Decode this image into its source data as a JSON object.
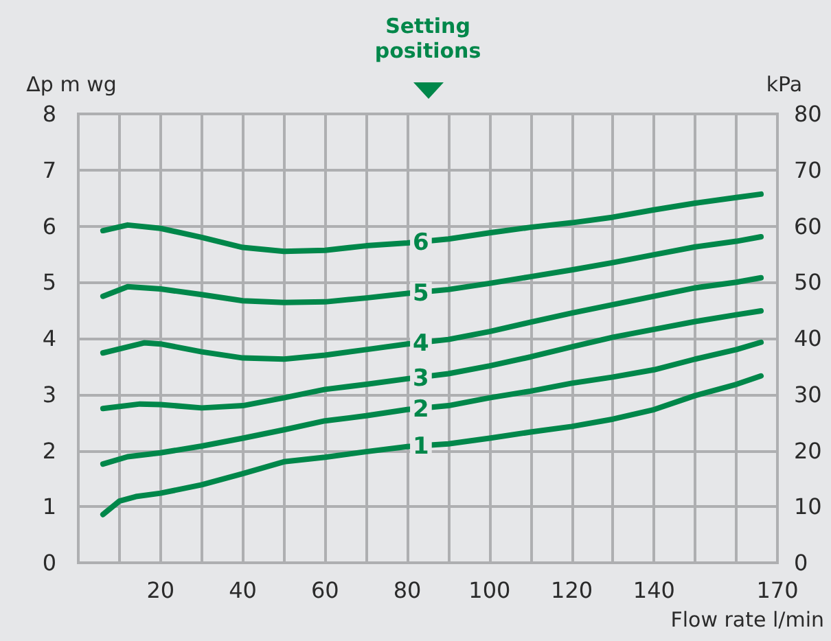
{
  "chart_data": {
    "type": "line",
    "xlabel": "Flow rate l/min",
    "ylabel": "Δp m wg",
    "y2label": "kPa",
    "annotations": [
      "Setting positions"
    ],
    "x": [
      6,
      12,
      20,
      30,
      40,
      50,
      60,
      70,
      80,
      90,
      100,
      110,
      120,
      130,
      140,
      150,
      160,
      166
    ],
    "series": [
      {
        "name": "6",
        "color": "#00874a",
        "values": [
          5.92,
          6.02,
          5.96,
          5.8,
          5.62,
          5.55,
          5.57,
          5.65,
          5.7,
          5.77,
          5.88,
          5.98,
          6.06,
          6.16,
          6.29,
          6.41,
          6.51,
          6.57
        ]
      },
      {
        "name": "5",
        "color": "#00874a",
        "values": [
          4.75,
          4.92,
          4.88,
          4.78,
          4.67,
          4.64,
          4.65,
          4.72,
          4.8,
          4.87,
          4.98,
          5.1,
          5.22,
          5.35,
          5.49,
          5.63,
          5.73,
          5.81
        ]
      },
      {
        "name": "4",
        "color": "#00874a",
        "x": [
          6,
          16,
          20,
          30,
          40,
          50,
          60,
          70,
          80,
          90,
          100,
          110,
          120,
          130,
          140,
          150,
          160,
          166
        ],
        "values": [
          3.74,
          3.92,
          3.9,
          3.76,
          3.65,
          3.63,
          3.7,
          3.8,
          3.9,
          3.98,
          4.12,
          4.29,
          4.45,
          4.6,
          4.75,
          4.9,
          5.0,
          5.08
        ]
      },
      {
        "name": "3",
        "color": "#00874a",
        "x": [
          6,
          15,
          20,
          30,
          40,
          50,
          60,
          70,
          80,
          90,
          100,
          110,
          120,
          130,
          140,
          150,
          160,
          166
        ],
        "values": [
          2.75,
          2.83,
          2.82,
          2.76,
          2.8,
          2.94,
          3.09,
          3.18,
          3.28,
          3.37,
          3.51,
          3.67,
          3.85,
          4.02,
          4.16,
          4.3,
          4.42,
          4.49
        ]
      },
      {
        "name": "2",
        "color": "#00874a",
        "values": [
          1.76,
          1.89,
          1.96,
          2.08,
          2.22,
          2.37,
          2.53,
          2.62,
          2.73,
          2.8,
          2.94,
          3.06,
          3.2,
          3.31,
          3.44,
          3.63,
          3.8,
          3.93
        ]
      },
      {
        "name": "1",
        "color": "#00874a",
        "x": [
          6,
          10,
          14,
          20,
          30,
          40,
          50,
          60,
          70,
          80,
          90,
          100,
          110,
          120,
          130,
          140,
          150,
          160,
          166
        ],
        "values": [
          0.86,
          1.1,
          1.18,
          1.24,
          1.39,
          1.59,
          1.8,
          1.88,
          1.98,
          2.07,
          2.12,
          2.22,
          2.33,
          2.43,
          2.56,
          2.73,
          2.98,
          3.18,
          3.33
        ]
      }
    ],
    "xlim": [
      0,
      170
    ],
    "xticks": [
      {
        "value": 10,
        "label": null
      },
      20,
      {
        "value": 30,
        "label": null
      },
      40,
      {
        "value": 50,
        "label": null
      },
      60,
      {
        "value": 70,
        "label": null
      },
      80,
      {
        "value": 90,
        "label": null
      },
      100,
      {
        "value": 110,
        "label": null
      },
      120,
      {
        "value": 130,
        "label": null
      },
      140,
      {
        "value": 150,
        "label": null
      },
      {
        "value": 160,
        "label": null
      },
      170
    ],
    "ylim": [
      0,
      8
    ],
    "yticks": [
      0,
      1,
      2,
      3,
      4,
      5,
      6,
      7,
      8
    ],
    "y2lim": [
      0,
      80
    ],
    "y2ticks": [
      0,
      10,
      20,
      30,
      40,
      50,
      60,
      70,
      80
    ],
    "grid": true,
    "legend": false,
    "marker": "none",
    "line_style": "solid"
  }
}
